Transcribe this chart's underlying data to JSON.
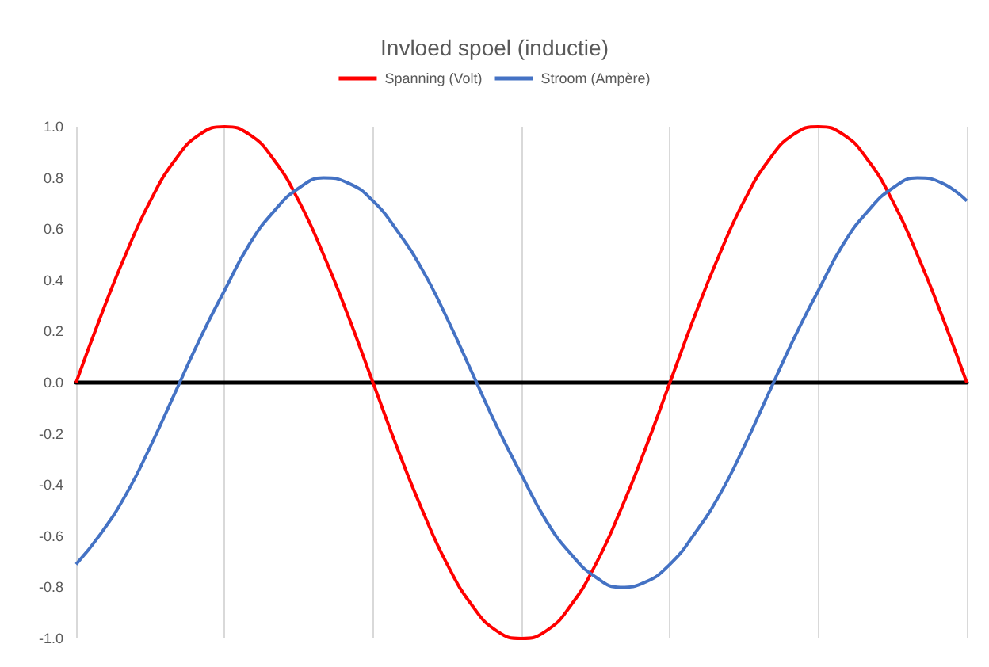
{
  "chart_data": {
    "type": "line",
    "title": "Invloed spoel (inductie)",
    "categories": [
      null,
      null,
      null,
      null,
      null,
      null,
      null,
      null,
      null,
      null,
      null,
      null,
      null,
      null,
      null,
      null,
      null,
      null,
      null,
      null,
      null,
      null,
      null,
      null,
      null,
      null,
      null,
      null,
      null,
      null,
      null,
      null,
      null,
      null,
      null,
      null,
      null
    ],
    "series": [
      {
        "name": "Spanning (Volt)",
        "color": "#ff0000",
        "values": [
          0,
          0.26,
          0.5,
          0.71,
          0.87,
          0.97,
          1,
          0.97,
          0.87,
          0.71,
          0.5,
          0.26,
          0,
          -0.26,
          -0.5,
          -0.71,
          -0.87,
          -0.97,
          -1,
          -0.97,
          -0.87,
          -0.71,
          -0.5,
          -0.26,
          0,
          0.26,
          0.5,
          0.71,
          0.87,
          0.97,
          1,
          0.97,
          0.87,
          0.71,
          0.5,
          0.26,
          0
        ]
      },
      {
        "name": "Stroom (Ampère)",
        "color": "#4472c4",
        "values": [
          -0.71,
          -0.59,
          -0.44,
          -0.25,
          -0.04,
          0.17,
          0.36,
          0.54,
          0.67,
          0.76,
          0.8,
          0.78,
          0.71,
          0.59,
          0.44,
          0.25,
          0.04,
          -0.17,
          -0.36,
          -0.54,
          -0.67,
          -0.76,
          -0.8,
          -0.78,
          -0.71,
          -0.59,
          -0.44,
          -0.25,
          -0.04,
          0.17,
          0.36,
          0.54,
          0.67,
          0.76,
          0.8,
          0.78,
          0.71
        ]
      }
    ],
    "ylim": [
      -1,
      1
    ],
    "yticks": [
      {
        "value": -1,
        "label": "-1.0"
      },
      {
        "value": -0.8,
        "label": "-0.8"
      },
      {
        "value": -0.6,
        "label": "-0.6"
      },
      {
        "value": -0.4,
        "label": "-0.4"
      },
      {
        "value": -0.2,
        "label": "-0.2"
      },
      {
        "value": 0,
        "label": "0.0"
      },
      {
        "value": 0.2,
        "label": "0.2"
      },
      {
        "value": 0.4,
        "label": "0.4"
      },
      {
        "value": 0.6,
        "label": "0.6"
      },
      {
        "value": 0.8,
        "label": "0.8"
      },
      {
        "value": 1,
        "label": "1.0"
      }
    ],
    "tick_labels": "y",
    "grid": "x",
    "legend": "top",
    "marker": "none",
    "line_style": "solid"
  }
}
